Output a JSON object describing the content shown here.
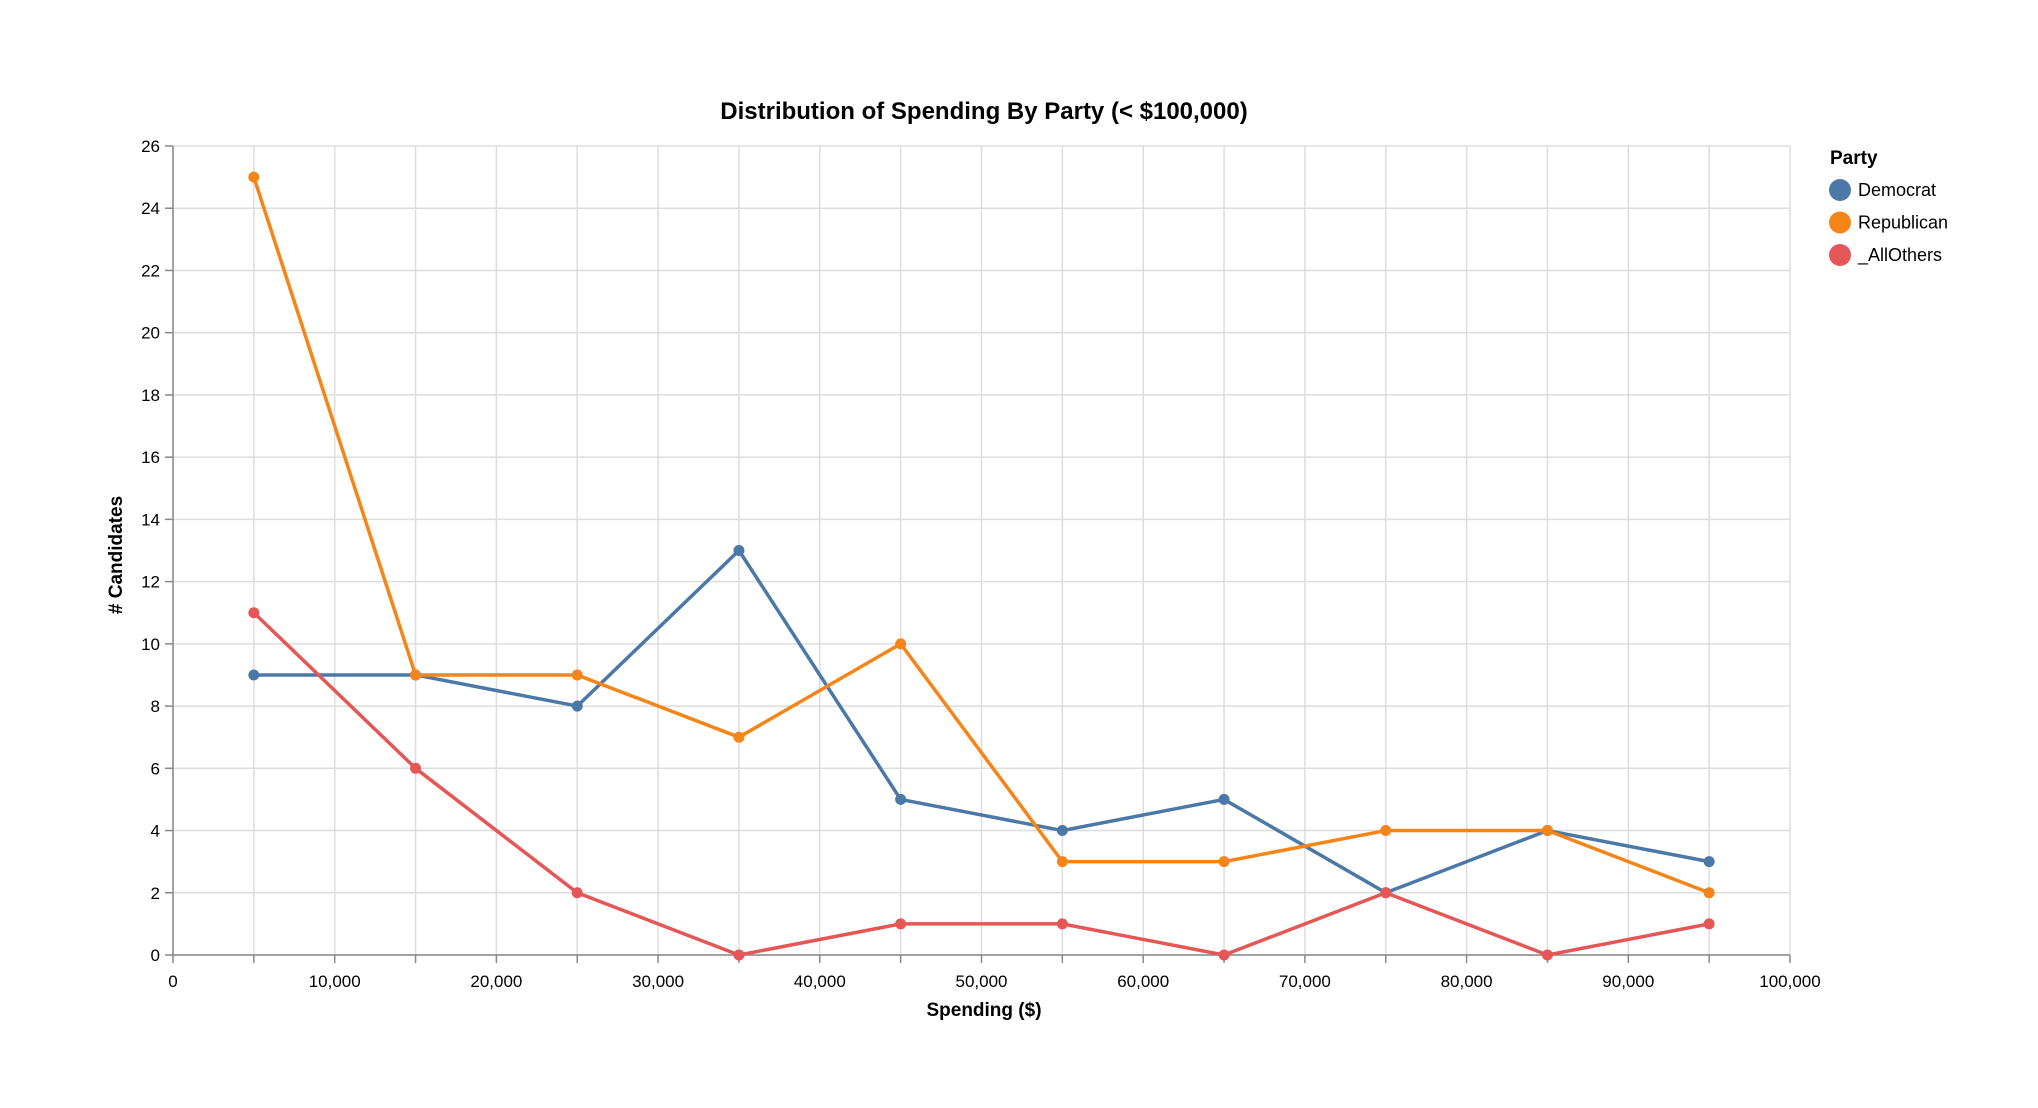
{
  "chart_data": {
    "type": "line",
    "title": "Distribution of Spending By Party (< $100,000)",
    "xlabel": "Spending ($)",
    "ylabel": "# Candidates",
    "xlim": [
      0,
      100000
    ],
    "ylim": [
      0,
      26
    ],
    "x_ticks": [
      0,
      10000,
      20000,
      30000,
      40000,
      50000,
      60000,
      70000,
      80000,
      90000,
      100000
    ],
    "x_tick_labels": [
      "0",
      "10,000",
      "20,000",
      "30,000",
      "40,000",
      "50,000",
      "60,000",
      "70,000",
      "80,000",
      "90,000",
      "100,000"
    ],
    "y_ticks": [
      0,
      2,
      4,
      6,
      8,
      10,
      12,
      14,
      16,
      18,
      20,
      22,
      24,
      26
    ],
    "y_tick_labels": [
      "0",
      "2",
      "4",
      "6",
      "8",
      "10",
      "12",
      "14",
      "16",
      "18",
      "20",
      "22",
      "24",
      "26"
    ],
    "grid": true,
    "legend": {
      "title": "Party",
      "placement": "top-right"
    },
    "x": [
      5000,
      15000,
      25000,
      35000,
      45000,
      55000,
      65000,
      75000,
      85000,
      95000
    ],
    "series": [
      {
        "name": "Democrat",
        "color": "#4c78a8",
        "values": [
          9,
          9,
          8,
          13,
          5,
          4,
          5,
          2,
          4,
          3
        ]
      },
      {
        "name": "Republican",
        "color": "#f58518",
        "values": [
          25,
          9,
          9,
          7,
          10,
          3,
          3,
          4,
          4,
          2
        ]
      },
      {
        "name": "_AllOthers",
        "color": "#e45756",
        "values": [
          11,
          6,
          2,
          0,
          1,
          1,
          0,
          2,
          0,
          1
        ]
      }
    ]
  }
}
